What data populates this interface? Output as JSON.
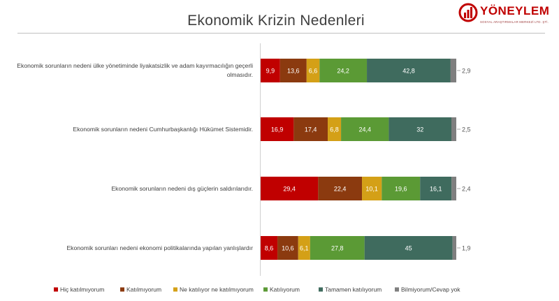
{
  "page": {
    "title": "Ekonomik Krizin Nedenleri",
    "logo": {
      "name": "YÖNEYLEM",
      "tagline": "SOSYAL ARAŞTIRMALAR MERKEZİ LTD. ŞTİ."
    }
  },
  "chart_data": {
    "type": "bar",
    "orientation": "horizontal",
    "stacked": true,
    "title": "Ekonomik Krizin Nedenleri",
    "categories": [
      "Ekonomik sorunların nedeni ülke yönetiminde liyakatsizlik ve adam kayırmacılığın geçerli olmasıdır.",
      "Ekonomik sorunların nedeni Cumhurbaşkanlığı Hükümet Sistemidir.",
      "Ekonomik sorunların nedeni dış güçlerin saldırılarıdır.",
      "Ekonomik sorunları nedeni ekonomi politikalarında yapılan yanlışlardır"
    ],
    "series": [
      {
        "name": "Hiç katılmıyorum",
        "color": "#c00000",
        "values": [
          9.9,
          16.9,
          29.4,
          8.6
        ],
        "labels": [
          "9,9",
          "16,9",
          "29,4",
          "8,6"
        ]
      },
      {
        "name": "Katılmıyorum",
        "color": "#8b3a0f",
        "values": [
          13.6,
          17.4,
          22.4,
          10.6
        ],
        "labels": [
          "13,6",
          "17,4",
          "22,4",
          "10,6"
        ]
      },
      {
        "name": "Ne katılıyor ne katılmıyorum",
        "color": "#d4a017",
        "values": [
          6.6,
          6.8,
          10.1,
          6.1
        ],
        "labels": [
          "6,6",
          "6,8",
          "10,1",
          "6,1"
        ]
      },
      {
        "name": "Katılıyorum",
        "color": "#5b9a35",
        "values": [
          24.2,
          24.4,
          19.6,
          27.8
        ],
        "labels": [
          "24,2",
          "24,4",
          "19,6",
          "27,8"
        ]
      },
      {
        "name": "Tamamen katılıyorum",
        "color": "#3f6b5e",
        "values": [
          42.8,
          32,
          16.1,
          45
        ],
        "labels": [
          "42,8",
          "32",
          "16,1",
          "45"
        ]
      },
      {
        "name": "Bilmiyorum/Cevap yok",
        "color": "#7f7f7f",
        "values": [
          2.9,
          2.5,
          2.4,
          1.9
        ],
        "labels": [
          "2,9",
          "2,5",
          "2,4",
          "1,9"
        ]
      }
    ],
    "xlim": [
      0,
      100
    ],
    "grid": false,
    "legend_position": "bottom"
  }
}
